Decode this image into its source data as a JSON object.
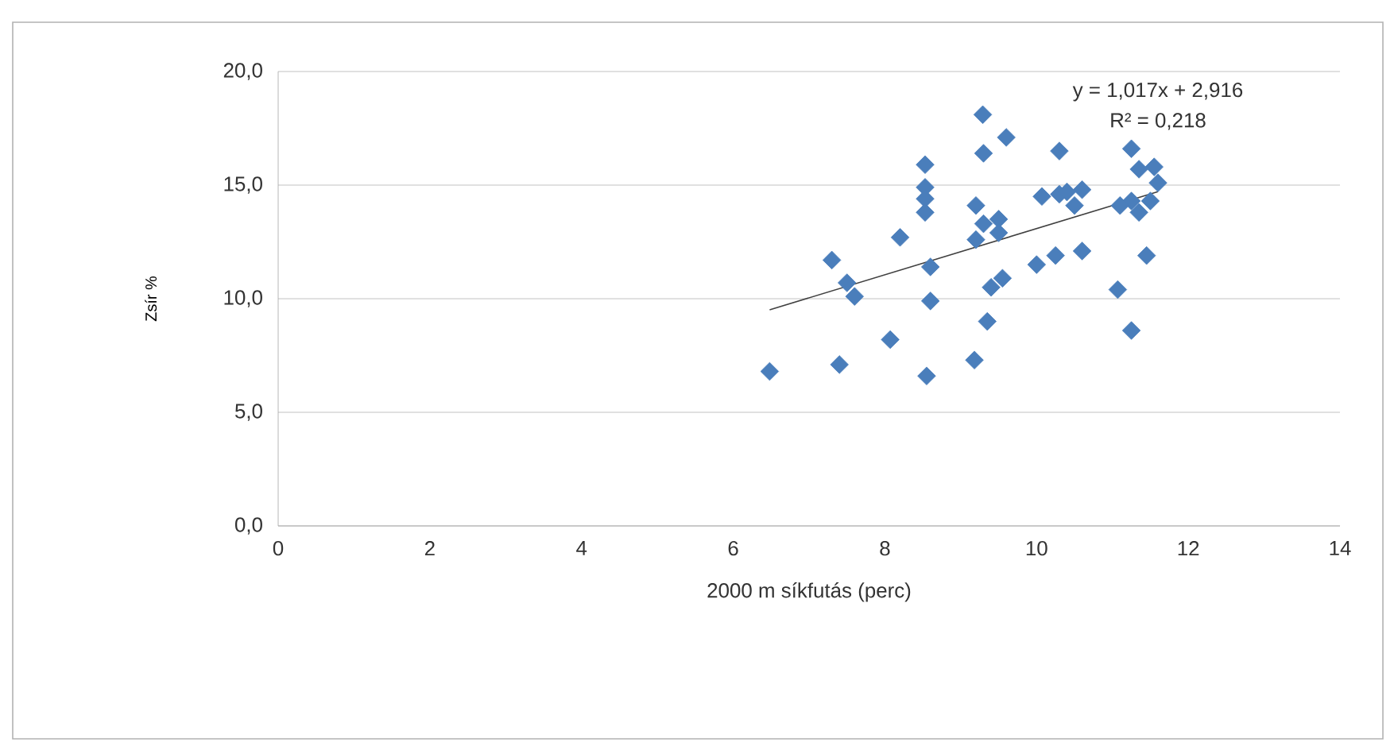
{
  "chart_data": {
    "type": "scatter",
    "xlabel": "2000 m síkfutás (perc)",
    "ylabel": "Zsír %",
    "annotations": [
      "y = 1,017x + 2,916",
      "R² = 0,218"
    ],
    "xlim": [
      0,
      14
    ],
    "xticks": [
      0,
      2,
      4,
      6,
      8,
      10,
      12,
      14
    ],
    "ylim": [
      0,
      20
    ],
    "yticks": [
      {
        "value": 0,
        "label": "0,0"
      },
      {
        "value": 5,
        "label": "5,0"
      },
      {
        "value": 10,
        "label": "10,0"
      },
      {
        "value": 15,
        "label": "15,0"
      },
      {
        "value": 20,
        "label": "20,0"
      }
    ],
    "grid": "y",
    "marker": "diamond",
    "series": [
      {
        "type": "scatter",
        "color": "#4a7ebb",
        "x": [
          6.48,
          7.3,
          7.4,
          7.5,
          7.6,
          8.07,
          8.2,
          8.55,
          8.6,
          8.6,
          8.53,
          8.53,
          8.53,
          8.53,
          9.18,
          9.29,
          9.3,
          9.4,
          9.55,
          9.35,
          9.6,
          9.2,
          9.2,
          9.3,
          9.5,
          9.5,
          10.0,
          10.25,
          10.6,
          10.3,
          10.07,
          10.3,
          10.5,
          10.6,
          10.4,
          11.07,
          11.25,
          11.25,
          11.35,
          11.25,
          11.35,
          11.45,
          11.55,
          11.5,
          11.6,
          11.1
        ],
        "values": [
          6.8,
          11.7,
          7.1,
          10.7,
          10.1,
          8.2,
          12.7,
          6.6,
          11.4,
          9.9,
          15.9,
          14.9,
          14.4,
          13.8,
          7.3,
          18.1,
          16.4,
          10.5,
          10.9,
          9.0,
          17.1,
          14.1,
          12.6,
          13.3,
          13.5,
          12.9,
          11.5,
          11.9,
          12.1,
          16.5,
          14.5,
          14.6,
          14.1,
          14.8,
          14.7,
          10.4,
          8.6,
          16.6,
          15.7,
          14.3,
          13.8,
          11.9,
          15.8,
          14.3,
          15.1,
          14.1
        ]
      },
      {
        "type": "line",
        "color": "#404040",
        "marker": "none",
        "x": [
          6.48,
          11.6
        ],
        "values": [
          9.51,
          14.71
        ]
      }
    ]
  }
}
